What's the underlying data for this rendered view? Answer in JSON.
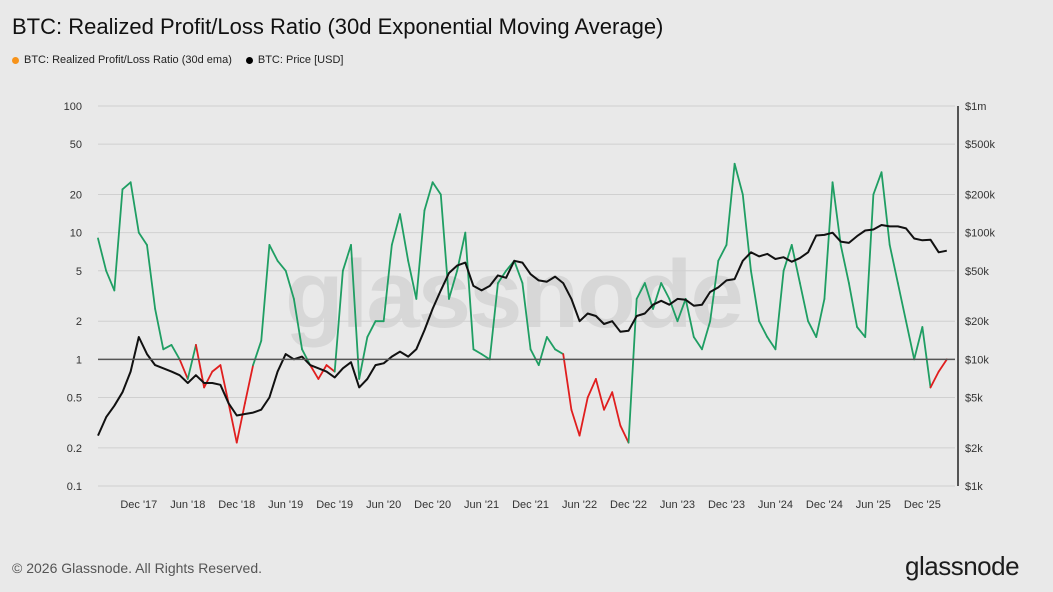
{
  "title": "BTC: Realized Profit/Loss Ratio (30d Exponential Moving Average)",
  "legend": [
    {
      "label": "BTC: Realized Profit/Loss Ratio (30d ema)",
      "color": "#f7931a"
    },
    {
      "label": "BTC: Price [USD]",
      "color": "#000000"
    }
  ],
  "footer": {
    "copyright": "© 2026 Glassnode. All Rights Reserved.",
    "brand": "glassnode"
  },
  "watermark": "glassnode",
  "colors": {
    "profit": "#1f9e63",
    "loss": "#e01e1e",
    "price": "#111111",
    "grid": "#d0d0d0",
    "baseline": "#555555"
  },
  "chart_data": {
    "type": "line",
    "x_tick_labels": [
      "Dec '17",
      "Jun '18",
      "Dec '18",
      "Jun '19",
      "Dec '19",
      "Jun '20",
      "Dec '20",
      "Jun '21",
      "Dec '21",
      "Jun '22",
      "Dec '22",
      "Jun '23",
      "Dec '23",
      "Jun '24",
      "Dec '24",
      "Jun '25",
      "Dec '25"
    ],
    "x_tick_dates": [
      "2017-12",
      "2018-06",
      "2018-12",
      "2019-06",
      "2019-12",
      "2020-06",
      "2020-12",
      "2021-06",
      "2021-12",
      "2022-06",
      "2022-12",
      "2023-06",
      "2023-12",
      "2024-06",
      "2024-12",
      "2025-06",
      "2025-12"
    ],
    "x_range": [
      "2017-07",
      "2026-04"
    ],
    "left_axis": {
      "scale": "log",
      "range": [
        0.1,
        100
      ],
      "ticks": [
        0.1,
        0.2,
        0.5,
        1,
        2,
        5,
        10,
        20,
        50,
        100
      ],
      "tick_labels": [
        "0.1",
        "0.2",
        "0.5",
        "1",
        "2",
        "5",
        "10",
        "20",
        "50",
        "100"
      ]
    },
    "right_axis": {
      "scale": "log",
      "range": [
        1000,
        1000000
      ],
      "ticks": [
        1000,
        2000,
        5000,
        10000,
        20000,
        50000,
        100000,
        200000,
        500000,
        1000000
      ],
      "tick_labels": [
        "$1k",
        "$2k",
        "$5k",
        "$10k",
        "$20k",
        "$50k",
        "$100k",
        "$200k",
        "$500k",
        "$1m"
      ]
    },
    "reference_line": 1,
    "series": [
      {
        "name": "BTC: Realized Profit/Loss Ratio (30d ema)",
        "axis": "left",
        "x": [
          "2017-07",
          "2017-08",
          "2017-09",
          "2017-10",
          "2017-11",
          "2017-12",
          "2018-01",
          "2018-02",
          "2018-03",
          "2018-04",
          "2018-05",
          "2018-06",
          "2018-07",
          "2018-08",
          "2018-09",
          "2018-10",
          "2018-11",
          "2018-12",
          "2019-01",
          "2019-02",
          "2019-03",
          "2019-04",
          "2019-05",
          "2019-06",
          "2019-07",
          "2019-08",
          "2019-09",
          "2019-10",
          "2019-11",
          "2019-12",
          "2020-01",
          "2020-02",
          "2020-03",
          "2020-04",
          "2020-05",
          "2020-06",
          "2020-07",
          "2020-08",
          "2020-09",
          "2020-10",
          "2020-11",
          "2020-12",
          "2021-01",
          "2021-02",
          "2021-03",
          "2021-04",
          "2021-05",
          "2021-06",
          "2021-07",
          "2021-08",
          "2021-09",
          "2021-10",
          "2021-11",
          "2021-12",
          "2022-01",
          "2022-02",
          "2022-03",
          "2022-04",
          "2022-05",
          "2022-06",
          "2022-07",
          "2022-08",
          "2022-09",
          "2022-10",
          "2022-11",
          "2022-12",
          "2023-01",
          "2023-02",
          "2023-03",
          "2023-04",
          "2023-05",
          "2023-06",
          "2023-07",
          "2023-08",
          "2023-09",
          "2023-10",
          "2023-11",
          "2023-12",
          "2024-01",
          "2024-02",
          "2024-03",
          "2024-04",
          "2024-05",
          "2024-06",
          "2024-07",
          "2024-08",
          "2024-09",
          "2024-10",
          "2024-11",
          "2024-12",
          "2025-01",
          "2025-02",
          "2025-03",
          "2025-04",
          "2025-05",
          "2025-06",
          "2025-07",
          "2025-08",
          "2025-09",
          "2025-10",
          "2025-11",
          "2025-12",
          "2026-01",
          "2026-02",
          "2026-03"
        ],
        "y": [
          9,
          5,
          3.5,
          22,
          25,
          10,
          8,
          2.5,
          1.2,
          1.3,
          1.0,
          0.7,
          1.3,
          0.6,
          0.8,
          0.9,
          0.45,
          0.22,
          0.45,
          0.9,
          1.4,
          8,
          6,
          5,
          3,
          1.2,
          0.9,
          0.7,
          0.9,
          0.8,
          5,
          8,
          0.7,
          1.5,
          2,
          2,
          8,
          14,
          6,
          3,
          15,
          25,
          20,
          3,
          5,
          10,
          1.2,
          1.1,
          1.0,
          4,
          5,
          6,
          4,
          1.2,
          0.9,
          1.5,
          1.2,
          1.1,
          0.4,
          0.25,
          0.5,
          0.7,
          0.4,
          0.55,
          0.3,
          0.22,
          3,
          4,
          2.5,
          4,
          3,
          2,
          3,
          1.5,
          1.2,
          2,
          6,
          8,
          35,
          20,
          5,
          2,
          1.5,
          1.2,
          5,
          8,
          4,
          2,
          1.5,
          3,
          25,
          8,
          4,
          1.8,
          1.5,
          20,
          30,
          8,
          4,
          2,
          1.0,
          1.8,
          0.6,
          0.8,
          1.0
        ]
      },
      {
        "name": "BTC: Price [USD]",
        "axis": "right",
        "x": [
          "2017-07",
          "2017-08",
          "2017-09",
          "2017-10",
          "2017-11",
          "2017-12",
          "2018-01",
          "2018-02",
          "2018-03",
          "2018-04",
          "2018-05",
          "2018-06",
          "2018-07",
          "2018-08",
          "2018-09",
          "2018-10",
          "2018-11",
          "2018-12",
          "2019-01",
          "2019-02",
          "2019-03",
          "2019-04",
          "2019-05",
          "2019-06",
          "2019-07",
          "2019-08",
          "2019-09",
          "2019-10",
          "2019-11",
          "2019-12",
          "2020-01",
          "2020-02",
          "2020-03",
          "2020-04",
          "2020-05",
          "2020-06",
          "2020-07",
          "2020-08",
          "2020-09",
          "2020-10",
          "2020-11",
          "2020-12",
          "2021-01",
          "2021-02",
          "2021-03",
          "2021-04",
          "2021-05",
          "2021-06",
          "2021-07",
          "2021-08",
          "2021-09",
          "2021-10",
          "2021-11",
          "2021-12",
          "2022-01",
          "2022-02",
          "2022-03",
          "2022-04",
          "2022-05",
          "2022-06",
          "2022-07",
          "2022-08",
          "2022-09",
          "2022-10",
          "2022-11",
          "2022-12",
          "2023-01",
          "2023-02",
          "2023-03",
          "2023-04",
          "2023-05",
          "2023-06",
          "2023-07",
          "2023-08",
          "2023-09",
          "2023-10",
          "2023-11",
          "2023-12",
          "2024-01",
          "2024-02",
          "2024-03",
          "2024-04",
          "2024-05",
          "2024-06",
          "2024-07",
          "2024-08",
          "2024-09",
          "2024-10",
          "2024-11",
          "2024-12",
          "2025-01",
          "2025-02",
          "2025-03",
          "2025-04",
          "2025-05",
          "2025-06",
          "2025-07",
          "2025-08",
          "2025-09",
          "2025-10",
          "2025-11",
          "2025-12",
          "2026-01",
          "2026-02",
          "2026-03"
        ],
        "y": [
          2500,
          3500,
          4300,
          5500,
          8000,
          15000,
          11000,
          9000,
          8500,
          8000,
          7500,
          6500,
          7500,
          6500,
          6500,
          6300,
          4500,
          3600,
          3700,
          3800,
          4000,
          5000,
          8000,
          11000,
          10000,
          10500,
          9000,
          8500,
          8000,
          7200,
          8500,
          9500,
          6000,
          7000,
          9000,
          9300,
          10500,
          11500,
          10500,
          12000,
          17000,
          25000,
          35000,
          48000,
          55000,
          58000,
          38000,
          35000,
          38000,
          46000,
          44000,
          60000,
          58000,
          47000,
          42000,
          41000,
          45000,
          40000,
          30000,
          20000,
          23000,
          22000,
          19000,
          20000,
          16500,
          16800,
          22000,
          23000,
          27000,
          29000,
          27000,
          30000,
          29500,
          26500,
          27000,
          34000,
          37000,
          42000,
          43000,
          60000,
          70000,
          65000,
          68000,
          62000,
          64000,
          59000,
          63000,
          70000,
          95000,
          96000,
          100000,
          85000,
          83000,
          94000,
          104000,
          106000,
          115000,
          112000,
          112000,
          108000,
          90000,
          87000,
          88000,
          70000,
          72000
        ]
      }
    ]
  }
}
